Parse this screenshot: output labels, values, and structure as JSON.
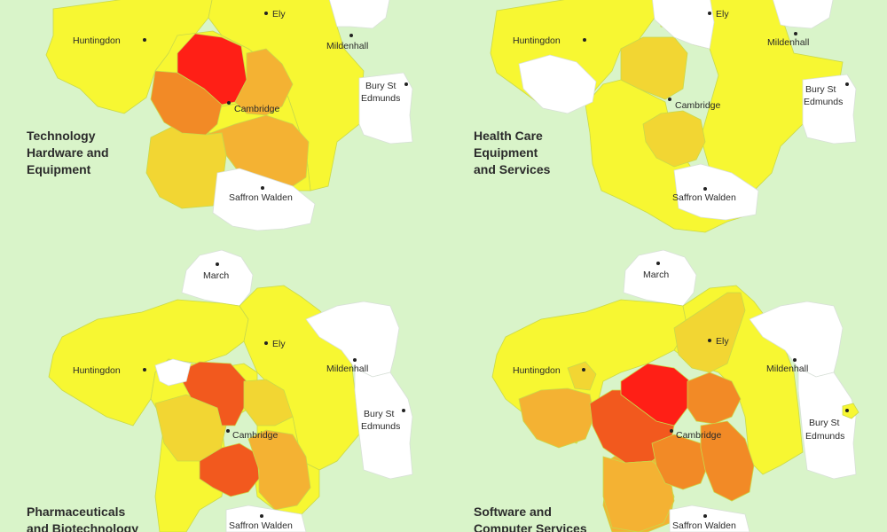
{
  "colors": {
    "background": "#d9f4c9",
    "none": "#ffffff",
    "low": "#f7f732",
    "medium_low": "#f2d633",
    "medium": "#f4b233",
    "medium_high": "#f28a26",
    "high": "#f2591e",
    "very_high": "#ff1f16"
  },
  "panels": [
    {
      "id": "tech",
      "title_lines": [
        "Technology",
        "Hardware and",
        "Equipment"
      ],
      "towns": [
        "Ely",
        "Huntingdon",
        "Mildenhall",
        "Bury St",
        "Edmunds",
        "Cambridge",
        "Saffron Walden"
      ]
    },
    {
      "id": "health",
      "title_lines": [
        "Health Care",
        "Equipment",
        "and Services"
      ],
      "towns": [
        "Ely",
        "Huntingdon",
        "Mildenhall",
        "Bury St",
        "Edmunds",
        "Cambridge",
        "Saffron Walden"
      ]
    },
    {
      "id": "pharma",
      "title_lines": [
        "Pharmaceuticals",
        "and Biotechnology"
      ],
      "towns": [
        "March",
        "Ely",
        "Huntingdon",
        "Mildenhall",
        "Bury St",
        "Edmunds",
        "Cambridge",
        "Saffron Walden"
      ]
    },
    {
      "id": "software",
      "title_lines": [
        "Software and",
        "Computer Services"
      ],
      "towns": [
        "March",
        "Ely",
        "Huntingdon",
        "Mildenhall",
        "Bury St",
        "Edmunds",
        "Cambridge",
        "Saffron Walden"
      ]
    }
  ]
}
